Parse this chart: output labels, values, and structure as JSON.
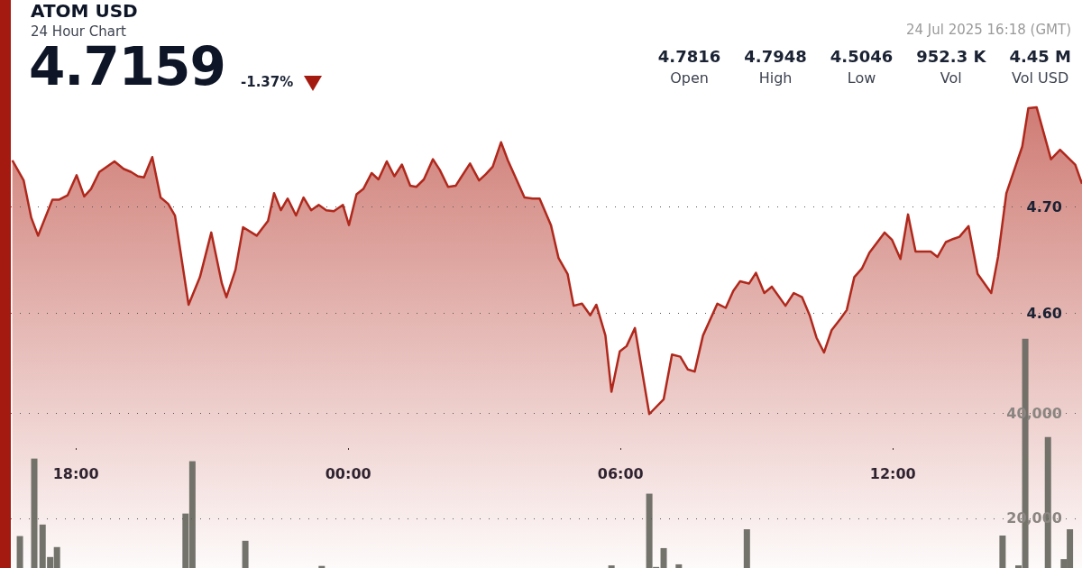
{
  "chart_data": {
    "type": "area",
    "title": "ATOM USD",
    "subtitle": "24 Hour Chart",
    "annotations": [
      "4.7159",
      "-1.37%",
      "24 Jul 2025 16:18 (GMT)",
      "4.7816",
      "Open",
      "4.7948",
      "High",
      "4.5046",
      "Low",
      "952.3 K",
      "Vol",
      "4.45 M",
      "Vol USD"
    ],
    "xlim": [
      "2025-07-23T16:34",
      "2025-07-24T16:10"
    ],
    "xticks": [
      {
        "value": "2025-07-23T18:00",
        "label": "18:00"
      },
      {
        "value": "2025-07-24T00:00",
        "label": "00:00"
      },
      {
        "value": "2025-07-24T06:00",
        "label": "06:00"
      },
      {
        "value": "2025-07-24T12:00",
        "label": "12:00"
      }
    ],
    "ylim": [
      4.36,
      4.895
    ],
    "yticks": [
      {
        "value": 4.6,
        "label": "4.60"
      },
      {
        "value": 4.7,
        "label": "4.70"
      }
    ],
    "y2lim": [
      10500,
      119000
    ],
    "y2ticks": [
      {
        "value": 20000,
        "label": "20,000"
      },
      {
        "value": 40000,
        "label": "40,000"
      }
    ],
    "grid": "y",
    "series": [
      {
        "color": "#b0281c",
        "x": [
          "2025-07-23T16:36",
          "2025-07-23T16:51",
          "2025-07-23T17:01",
          "2025-07-23T17:10",
          "2025-07-23T17:29",
          "2025-07-23T17:38",
          "2025-07-23T17:49",
          "2025-07-23T18:01",
          "2025-07-23T18:11",
          "2025-07-23T18:20",
          "2025-07-23T18:31",
          "2025-07-23T18:51",
          "2025-07-23T19:03",
          "2025-07-23T19:13",
          "2025-07-23T19:22",
          "2025-07-23T19:30",
          "2025-07-23T19:41",
          "2025-07-23T19:52",
          "2025-07-23T20:02",
          "2025-07-23T20:11",
          "2025-07-23T20:29",
          "2025-07-23T20:44",
          "2025-07-23T20:59",
          "2025-07-23T21:13",
          "2025-07-23T21:19",
          "2025-07-23T21:31",
          "2025-07-23T21:41",
          "2025-07-23T21:59",
          "2025-07-23T22:14",
          "2025-07-23T22:22",
          "2025-07-23T22:31",
          "2025-07-23T22:40",
          "2025-07-23T22:51",
          "2025-07-23T23:01",
          "2025-07-23T23:11",
          "2025-07-23T23:21",
          "2025-07-23T23:31",
          "2025-07-23T23:41",
          "2025-07-23T23:53",
          "2025-07-24T00:01",
          "2025-07-24T00:11",
          "2025-07-24T00:20",
          "2025-07-24T00:31",
          "2025-07-24T00:40",
          "2025-07-24T00:51",
          "2025-07-24T01:01",
          "2025-07-24T01:11",
          "2025-07-24T01:22",
          "2025-07-24T01:30",
          "2025-07-24T01:40",
          "2025-07-24T01:52",
          "2025-07-24T02:01",
          "2025-07-24T02:12",
          "2025-07-24T02:22",
          "2025-07-24T02:41",
          "2025-07-24T02:53",
          "2025-07-24T03:02",
          "2025-07-24T03:11",
          "2025-07-24T03:22",
          "2025-07-24T03:31",
          "2025-07-24T03:53",
          "2025-07-24T04:04",
          "2025-07-24T04:13",
          "2025-07-24T04:28",
          "2025-07-24T04:38",
          "2025-07-24T04:50",
          "2025-07-24T04:58",
          "2025-07-24T05:09",
          "2025-07-24T05:20",
          "2025-07-24T05:28",
          "2025-07-24T05:40",
          "2025-07-24T05:48",
          "2025-07-24T05:59",
          "2025-07-24T06:08",
          "2025-07-24T06:19",
          "2025-07-24T06:38",
          "2025-07-24T06:57",
          "2025-07-24T07:08",
          "2025-07-24T07:19",
          "2025-07-24T07:29",
          "2025-07-24T07:38",
          "2025-07-24T07:49",
          "2025-07-24T08:08",
          "2025-07-24T08:19",
          "2025-07-24T08:29",
          "2025-07-24T08:38",
          "2025-07-24T08:50",
          "2025-07-24T08:59",
          "2025-07-24T09:10",
          "2025-07-24T09:20",
          "2025-07-24T09:38",
          "2025-07-24T09:49",
          "2025-07-24T10:00",
          "2025-07-24T10:10",
          "2025-07-24T10:19",
          "2025-07-24T10:29",
          "2025-07-24T10:39",
          "2025-07-24T10:51",
          "2025-07-24T10:59",
          "2025-07-24T11:09",
          "2025-07-24T11:19",
          "2025-07-24T11:29",
          "2025-07-24T11:49",
          "2025-07-24T11:59",
          "2025-07-24T12:10",
          "2025-07-24T12:20",
          "2025-07-24T12:30",
          "2025-07-24T12:50",
          "2025-07-24T12:59",
          "2025-07-24T13:10",
          "2025-07-24T13:20",
          "2025-07-24T13:28",
          "2025-07-24T13:40",
          "2025-07-24T13:52",
          "2025-07-24T14:10",
          "2025-07-24T14:19",
          "2025-07-24T14:30",
          "2025-07-24T14:51",
          "2025-07-24T14:59",
          "2025-07-24T15:10",
          "2025-07-24T15:29",
          "2025-07-24T15:41",
          "2025-07-24T16:01",
          "2025-07-24T16:10"
        ],
        "values": [
          4.744,
          4.725,
          4.69,
          4.673,
          4.707,
          4.707,
          4.711,
          4.73,
          4.71,
          4.717,
          4.733,
          4.743,
          4.736,
          4.733,
          4.729,
          4.728,
          4.747,
          4.709,
          4.703,
          4.692,
          4.608,
          4.634,
          4.676,
          4.628,
          4.615,
          4.641,
          4.681,
          4.673,
          4.687,
          4.713,
          4.697,
          4.708,
          4.692,
          4.709,
          4.697,
          4.702,
          4.697,
          4.696,
          4.702,
          4.683,
          4.712,
          4.717,
          4.732,
          4.726,
          4.743,
          4.729,
          4.74,
          4.72,
          4.719,
          4.726,
          4.745,
          4.735,
          4.719,
          4.72,
          4.741,
          4.725,
          4.731,
          4.738,
          4.761,
          4.744,
          4.709,
          4.708,
          4.708,
          4.683,
          4.652,
          4.637,
          4.607,
          4.609,
          4.598,
          4.608,
          4.579,
          4.526,
          4.564,
          4.569,
          4.586,
          4.505,
          4.519,
          4.561,
          4.559,
          4.547,
          4.545,
          4.579,
          4.609,
          4.605,
          4.621,
          4.63,
          4.628,
          4.638,
          4.619,
          4.625,
          4.607,
          4.619,
          4.615,
          4.598,
          4.577,
          4.563,
          4.584,
          4.595,
          4.603,
          4.634,
          4.642,
          4.657,
          4.676,
          4.669,
          4.651,
          4.693,
          4.658,
          4.658,
          4.653,
          4.667,
          4.67,
          4.672,
          4.682,
          4.637,
          4.619,
          4.653,
          4.713,
          4.757,
          4.793,
          4.794,
          4.745,
          4.754,
          4.74,
          4.722
        ]
      },
      {
        "type": "bar",
        "axis": "y2",
        "color": "#6b6b63",
        "x": [
          "2025-07-23T16:46",
          "2025-07-23T17:05",
          "2025-07-23T17:16",
          "2025-07-23T17:26",
          "2025-07-23T17:35",
          "2025-07-23T20:25",
          "2025-07-23T20:34",
          "2025-07-23T21:44",
          "2025-07-23T23:25",
          "2025-07-24T05:48",
          "2025-07-24T06:38",
          "2025-07-24T06:47",
          "2025-07-24T06:57",
          "2025-07-24T07:17",
          "2025-07-24T08:47",
          "2025-07-24T14:25",
          "2025-07-24T14:46",
          "2025-07-24T14:55",
          "2025-07-24T15:25",
          "2025-07-24T15:46",
          "2025-07-24T15:54"
        ],
        "values": [
          16600,
          31400,
          18800,
          12600,
          14500,
          20900,
          30900,
          15700,
          10900,
          11000,
          24700,
          10700,
          14300,
          11200,
          17900,
          16700,
          11000,
          54300,
          35500,
          12200,
          17900
        ]
      }
    ]
  }
}
